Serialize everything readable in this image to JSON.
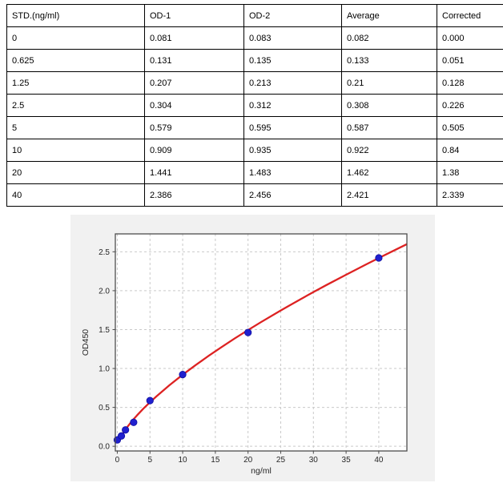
{
  "table": {
    "columns": [
      "STD.(ng/ml)",
      "OD-1",
      "OD-2",
      "Average",
      "Corrected"
    ],
    "rows": [
      [
        "0",
        "0.081",
        "0.083",
        "0.082",
        "0.000"
      ],
      [
        "0.625",
        "0.131",
        "0.135",
        "0.133",
        "0.051"
      ],
      [
        "1.25",
        "0.207",
        "0.213",
        "0.21",
        "0.128"
      ],
      [
        "2.5",
        "0.304",
        "0.312",
        "0.308",
        "0.226"
      ],
      [
        "5",
        "0.579",
        "0.595",
        "0.587",
        "0.505"
      ],
      [
        "10",
        "0.909",
        "0.935",
        "0.922",
        "0.84"
      ],
      [
        "20",
        "1.441",
        "1.483",
        "1.462",
        "1.38"
      ],
      [
        "40",
        "2.386",
        "2.456",
        "2.421",
        "2.339"
      ]
    ]
  },
  "chart_data": {
    "type": "scatter",
    "title": "",
    "xlabel": "ng/ml",
    "ylabel": "OD450",
    "xlim": [
      -0.3,
      44.3
    ],
    "ylim": [
      -0.06,
      2.73
    ],
    "xticks": [
      0,
      5,
      10,
      15,
      20,
      25,
      30,
      35,
      40
    ],
    "xticklabels": [
      "0",
      "5",
      "10",
      "15",
      "20",
      "25",
      "30",
      "35",
      "40"
    ],
    "yticks": [
      0.0,
      0.5,
      1.0,
      1.5,
      2.0,
      2.5
    ],
    "yticklabels": [
      "0.0",
      "0.5",
      "1.0",
      "1.5",
      "2.0",
      "2.5"
    ],
    "grid": true,
    "legend": "none",
    "points": {
      "name": "standards-average",
      "x": [
        0,
        0.625,
        1.25,
        2.5,
        5,
        10,
        20,
        40
      ],
      "y": [
        0.082,
        0.133,
        0.21,
        0.308,
        0.587,
        0.922,
        1.462,
        2.421
      ]
    },
    "fit_curve": {
      "name": "fitted-standard-curve",
      "x": [
        0,
        0.3,
        0.625,
        1,
        1.5,
        2,
        2.5,
        3,
        4,
        5,
        6,
        7,
        8,
        10,
        12,
        14,
        16,
        18,
        20,
        22,
        25,
        28,
        30,
        32,
        35,
        38,
        40,
        42,
        44.3
      ],
      "y": [
        0.05,
        0.08,
        0.132,
        0.184,
        0.244,
        0.298,
        0.349,
        0.396,
        0.485,
        0.566,
        0.643,
        0.715,
        0.787,
        0.92,
        1.045,
        1.164,
        1.278,
        1.388,
        1.494,
        1.597,
        1.746,
        1.889,
        1.982,
        2.073,
        2.205,
        2.335,
        2.42,
        2.503,
        2.598
      ]
    },
    "colors": {
      "figure_bg": "#f1f1f1",
      "plot_bg": "#ffffff",
      "grid": "#c9c9c9",
      "spine": "#4d4d4d",
      "tick": "#4d4d4d",
      "label": "#262626",
      "point_fill": "#2020cf",
      "point_edge": "#1010a0",
      "curve": "#dd2222"
    }
  }
}
